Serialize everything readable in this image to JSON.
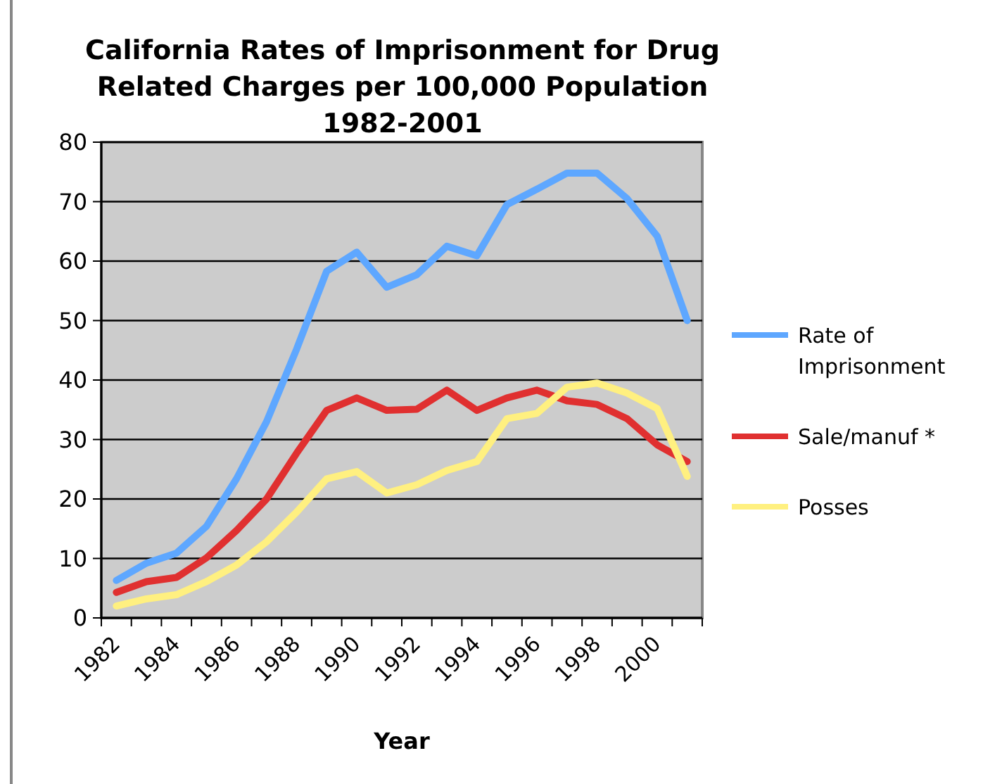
{
  "chart_data": {
    "type": "line",
    "title": "California Rates of Imprisonment for Drug\nRelated Charges per 100,000 Population\n1982-2001",
    "xlabel": "Year",
    "categories": [
      "1982",
      null,
      "1984",
      null,
      "1986",
      null,
      "1988",
      null,
      "1990",
      null,
      "1992",
      null,
      "1994",
      null,
      "1996",
      null,
      "1998",
      null,
      "2000",
      null
    ],
    "series": [
      {
        "name": "Rate of Imprisonment",
        "color": "#5ea7ff",
        "values": [
          6.3,
          9.2,
          10.9,
          15.4,
          23.4,
          33,
          45.2,
          58.3,
          61.5,
          55.6,
          57.7,
          62.5,
          60.9,
          69.5,
          72.1,
          74.8,
          74.8,
          70.5,
          64.2,
          50
        ]
      },
      {
        "name": "Sale/manuf *",
        "color": "#e03030",
        "values": [
          4.3,
          6.1,
          6.8,
          10.1,
          14.7,
          20,
          27.7,
          34.9,
          37,
          34.9,
          35.1,
          38.3,
          34.9,
          37,
          38.3,
          36.5,
          35.9,
          33.5,
          29.1,
          26.3
        ]
      },
      {
        "name": "Posses",
        "color": "#fff080",
        "values": [
          2,
          3.2,
          3.9,
          6.1,
          8.9,
          12.8,
          17.8,
          23.4,
          24.6,
          21,
          22.4,
          24.8,
          26.3,
          33.5,
          34.4,
          38.8,
          39.5,
          37.8,
          35.2,
          23.8
        ]
      }
    ],
    "ylim": [
      0,
      80
    ],
    "yticks": [
      0,
      10,
      20,
      30,
      40,
      50,
      60,
      70,
      80
    ],
    "grid": "y",
    "legend": "right",
    "line_style": "solid"
  }
}
